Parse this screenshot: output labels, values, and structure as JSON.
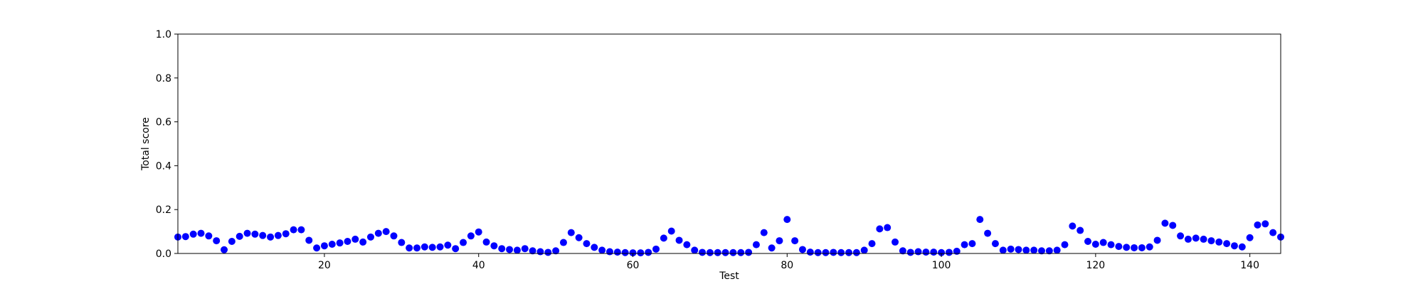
{
  "chart_data": {
    "type": "scatter",
    "title": "",
    "xlabel": "Test",
    "ylabel": "Total score",
    "xlim": [
      1,
      144
    ],
    "ylim": [
      0,
      1.0
    ],
    "xticks": [
      20,
      40,
      60,
      80,
      100,
      120,
      140
    ],
    "xtick_labels": [
      "20",
      "40",
      "60",
      "80",
      "100",
      "120",
      "140"
    ],
    "yticks": [
      0,
      0.2,
      0.4,
      0.6,
      0.8,
      1.0
    ],
    "ytick_labels": [
      "0.0",
      "0.2",
      "0.4",
      "0.6",
      "0.8",
      "1.0"
    ],
    "grid": false,
    "marker_color": "#0000ff",
    "x": [
      1,
      2,
      3,
      4,
      5,
      6,
      7,
      8,
      9,
      10,
      11,
      12,
      13,
      14,
      15,
      16,
      17,
      18,
      19,
      20,
      21,
      22,
      23,
      24,
      25,
      26,
      27,
      28,
      29,
      30,
      31,
      32,
      33,
      34,
      35,
      36,
      37,
      38,
      39,
      40,
      41,
      42,
      43,
      44,
      45,
      46,
      47,
      48,
      49,
      50,
      51,
      52,
      53,
      54,
      55,
      56,
      57,
      58,
      59,
      60,
      61,
      62,
      63,
      64,
      65,
      66,
      67,
      68,
      69,
      70,
      71,
      72,
      73,
      74,
      75,
      76,
      77,
      78,
      79,
      80,
      81,
      82,
      83,
      84,
      85,
      86,
      87,
      88,
      89,
      90,
      91,
      92,
      93,
      94,
      95,
      96,
      97,
      98,
      99,
      100,
      101,
      102,
      103,
      104,
      105,
      106,
      107,
      108,
      109,
      110,
      111,
      112,
      113,
      114,
      115,
      116,
      117,
      118,
      119,
      120,
      121,
      122,
      123,
      124,
      125,
      126,
      127,
      128,
      129,
      130,
      131,
      132,
      133,
      134,
      135,
      136,
      137,
      138,
      139,
      140,
      141,
      142,
      143,
      144
    ],
    "y": [
      0.075,
      0.077,
      0.088,
      0.092,
      0.08,
      0.058,
      0.017,
      0.055,
      0.078,
      0.092,
      0.088,
      0.082,
      0.075,
      0.082,
      0.09,
      0.108,
      0.108,
      0.06,
      0.025,
      0.035,
      0.042,
      0.048,
      0.055,
      0.065,
      0.052,
      0.075,
      0.092,
      0.1,
      0.08,
      0.05,
      0.025,
      0.025,
      0.03,
      0.028,
      0.03,
      0.038,
      0.022,
      0.05,
      0.08,
      0.098,
      0.052,
      0.035,
      0.022,
      0.018,
      0.015,
      0.022,
      0.012,
      0.008,
      0.005,
      0.012,
      0.05,
      0.095,
      0.072,
      0.045,
      0.028,
      0.015,
      0.008,
      0.006,
      0.004,
      0.003,
      0.003,
      0.005,
      0.02,
      0.07,
      0.102,
      0.06,
      0.04,
      0.015,
      0.005,
      0.004,
      0.004,
      0.004,
      0.004,
      0.004,
      0.005,
      0.04,
      0.095,
      0.025,
      0.058,
      0.155,
      0.058,
      0.018,
      0.006,
      0.004,
      0.004,
      0.005,
      0.004,
      0.004,
      0.004,
      0.015,
      0.045,
      0.112,
      0.118,
      0.052,
      0.012,
      0.005,
      0.008,
      0.006,
      0.006,
      0.004,
      0.005,
      0.01,
      0.04,
      0.045,
      0.155,
      0.092,
      0.045,
      0.015,
      0.02,
      0.018,
      0.015,
      0.015,
      0.012,
      0.012,
      0.015,
      0.04,
      0.125,
      0.105,
      0.055,
      0.042,
      0.05,
      0.04,
      0.032,
      0.028,
      0.026,
      0.026,
      0.03,
      0.06,
      0.138,
      0.128,
      0.08,
      0.065,
      0.07,
      0.065,
      0.058,
      0.052,
      0.045,
      0.035,
      0.03,
      0.072,
      0.13,
      0.135,
      0.095,
      0.075
    ]
  }
}
